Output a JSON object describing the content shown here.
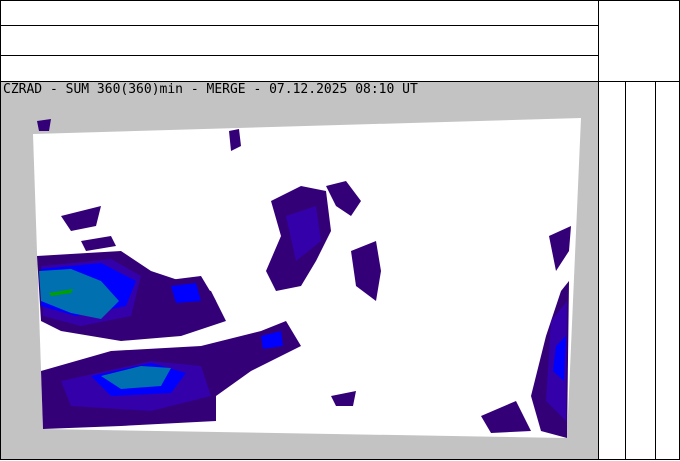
{
  "header": {
    "rows": [
      "",
      "",
      ""
    ]
  },
  "map": {
    "title": "CZRAD - SUM 360(360)min - MERGE - 07.12.2025 08:10 UT",
    "colors": {
      "background": "#c3c3c3",
      "coverage": "#ffffff",
      "level1": "#330077",
      "level2": "#3300aa",
      "level3": "#0000ff",
      "level4": "#0070b0",
      "level5": "#00a000"
    }
  },
  "legend": {
    "columns": [
      "",
      "",
      ""
    ]
  }
}
